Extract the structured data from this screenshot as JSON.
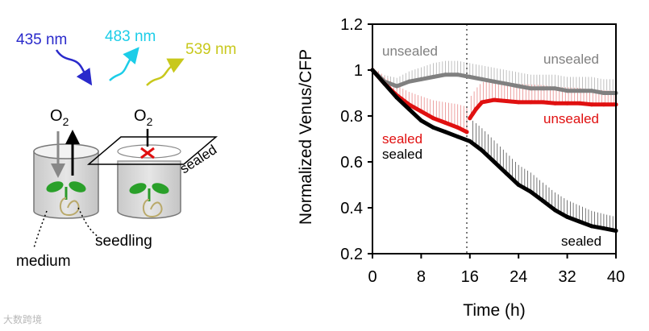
{
  "figure": {
    "wavelengths": [
      {
        "label": "435 nm",
        "color": "#2a2acb"
      },
      {
        "label": "483 nm",
        "color": "#1ccde8"
      },
      {
        "label": "539 nm",
        "color": "#c8c81c"
      }
    ],
    "gas_label": "O",
    "gas_subscript": "2",
    "sealed_tag": "sealed",
    "seedling_label": "seedling",
    "medium_label": "medium",
    "watermark": "大数跨境"
  },
  "chart_data": {
    "type": "line",
    "xlabel": "Time (h)",
    "ylabel": "Normalized Venus/CFP",
    "xlim": [
      0,
      40
    ],
    "ylim": [
      0.2,
      1.2
    ],
    "xticks": [
      0,
      8,
      16,
      24,
      32,
      40
    ],
    "yticks": [
      0.2,
      0.4,
      0.6,
      0.8,
      1,
      1.2
    ],
    "ytick_labels": [
      "0.2",
      "0.4",
      "0.6",
      "0.8",
      "1",
      "1.2"
    ],
    "vline_x": 15.5,
    "series": [
      {
        "name": "unsealed",
        "color": "#808080",
        "x": [
          0,
          2,
          4,
          6,
          8,
          10,
          12,
          14,
          16,
          18,
          20,
          22,
          24,
          26,
          28,
          30,
          32,
          34,
          36,
          38,
          40
        ],
        "y": [
          1.0,
          0.95,
          0.93,
          0.95,
          0.96,
          0.97,
          0.98,
          0.98,
          0.97,
          0.96,
          0.95,
          0.94,
          0.93,
          0.92,
          0.92,
          0.92,
          0.91,
          0.91,
          0.91,
          0.9,
          0.9
        ]
      },
      {
        "name": "sealed→unsealed",
        "color": "#e01010",
        "x": [
          0,
          2,
          4,
          6,
          8,
          10,
          12,
          14,
          15.5,
          16,
          16.5,
          17,
          18,
          20,
          22,
          24,
          26,
          28,
          30,
          32,
          34,
          36,
          38,
          40
        ],
        "y": [
          1.0,
          0.94,
          0.89,
          0.85,
          0.82,
          0.79,
          0.77,
          0.75,
          0.73,
          0.79,
          0.81,
          0.83,
          0.86,
          0.87,
          0.865,
          0.86,
          0.86,
          0.86,
          0.855,
          0.855,
          0.855,
          0.85,
          0.85,
          0.85
        ]
      },
      {
        "name": "sealed",
        "color": "#000000",
        "x": [
          0,
          2,
          4,
          6,
          8,
          10,
          12,
          14,
          16,
          18,
          20,
          22,
          24,
          26,
          28,
          30,
          32,
          34,
          36,
          38,
          40
        ],
        "y": [
          1.0,
          0.94,
          0.88,
          0.83,
          0.78,
          0.75,
          0.73,
          0.71,
          0.69,
          0.65,
          0.6,
          0.55,
          0.5,
          0.47,
          0.43,
          0.39,
          0.36,
          0.34,
          0.32,
          0.31,
          0.3
        ]
      }
    ],
    "annotations": [
      {
        "text": "unsealed",
        "color": "#808080"
      },
      {
        "text": "unsealed",
        "color": "#808080"
      },
      {
        "text": "unsealed",
        "color": "#e01010"
      },
      {
        "text": "sealed",
        "color": "#e01010"
      },
      {
        "text": "sealed",
        "color": "#000000"
      },
      {
        "text": "sealed",
        "color": "#000000"
      }
    ]
  }
}
